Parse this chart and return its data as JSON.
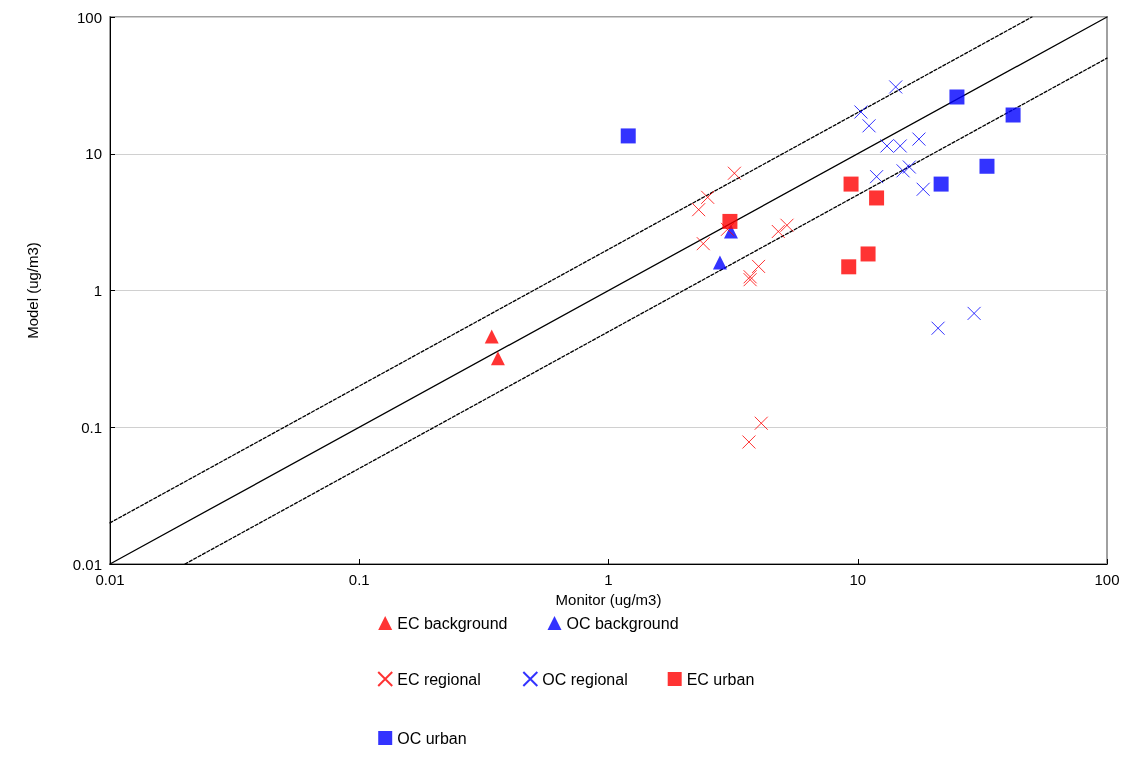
{
  "chart_data": {
    "type": "scatter",
    "xlabel": "Monitor (ug/m3)",
    "ylabel": "Model (ug/m3)",
    "log": "xy",
    "xlim": [
      0.01,
      100
    ],
    "ylim": [
      0.01,
      100
    ],
    "xticks": [
      0.01,
      0.1,
      1,
      10,
      100
    ],
    "yticks": [
      0.01,
      0.1,
      1,
      10,
      100
    ],
    "grid": "y",
    "legend": "bottom",
    "series": [
      {
        "name": "EC background",
        "color": "#ff0000",
        "marker": "triangle",
        "x": [
          0.34,
          0.36
        ],
        "values": [
          0.46,
          0.32
        ]
      },
      {
        "name": "OC background",
        "color": "#0000ff",
        "marker": "triangle",
        "x": [
          3.1,
          2.8
        ],
        "values": [
          2.7,
          1.6
        ]
      },
      {
        "name": "EC regional",
        "color": "#ff0000",
        "marker": "cross",
        "x": [
          3.2,
          2.5,
          2.3,
          2.4,
          3.0,
          4.8,
          5.2,
          4.0,
          3.7,
          3.7,
          4.1,
          3.66
        ],
        "values": [
          7.2,
          4.8,
          3.9,
          2.2,
          2.8,
          2.7,
          3.0,
          1.5,
          1.26,
          1.2,
          0.107,
          0.078
        ]
      },
      {
        "name": "OC regional",
        "color": "#0000ff",
        "marker": "cross",
        "x": [
          14.2,
          10.3,
          11.1,
          17.6,
          13.1,
          14.8,
          11.9,
          15.2,
          16.1,
          18.3,
          29.3,
          21
        ],
        "values": [
          30.8,
          20.2,
          16,
          12.8,
          11.4,
          11.4,
          6.8,
          7.5,
          8.0,
          5.5,
          0.68,
          0.53
        ]
      },
      {
        "name": "EC urban",
        "color": "#ff0000",
        "marker": "square",
        "x": [
          3.07,
          9.4,
          11.9,
          9.2,
          11.0
        ],
        "values": [
          3.2,
          6.0,
          4.75,
          1.49,
          1.85
        ]
      },
      {
        "name": "OC urban",
        "color": "#0000ff",
        "marker": "square",
        "x": [
          1.2,
          25,
          42,
          33,
          21.6
        ],
        "values": [
          13.5,
          26,
          19.2,
          8.1,
          6.0
        ]
      },
      {
        "type": "line",
        "color": "#000000",
        "line_style": "solid",
        "marker": "none",
        "x": [
          0.01,
          100
        ],
        "values": [
          0.01,
          100
        ]
      },
      {
        "type": "line",
        "color": "#000000",
        "line_style": "dashed",
        "marker": "none",
        "x": [
          0.01,
          50
        ],
        "values": [
          0.02,
          100
        ]
      },
      {
        "type": "line",
        "color": "#000000",
        "line_style": "dashed",
        "marker": "none",
        "x": [
          0.02,
          100
        ],
        "values": [
          0.01,
          50
        ]
      }
    ]
  }
}
